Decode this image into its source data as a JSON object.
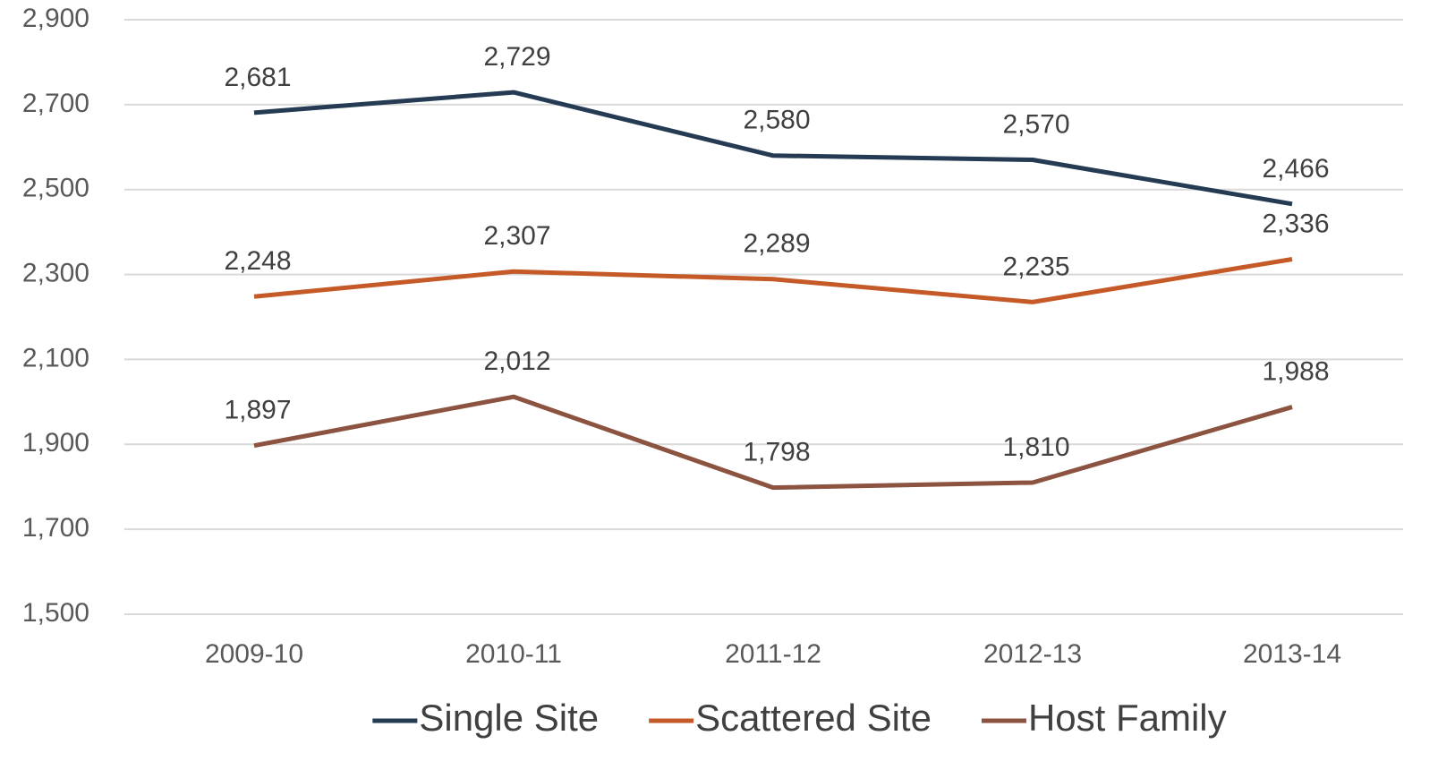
{
  "chart_data": {
    "type": "line",
    "categories": [
      "2009-10",
      "2010-11",
      "2011-12",
      "2012-13",
      "2013-14"
    ],
    "series": [
      {
        "name": "Single Site",
        "color": "#243b53",
        "values": [
          2681,
          2729,
          2580,
          2570,
          2466
        ],
        "value_labels": [
          "2,681",
          "2,729",
          "2,580",
          "2,570",
          "2,466"
        ]
      },
      {
        "name": "Scattered Site",
        "color": "#c55a28",
        "values": [
          2248,
          2307,
          2289,
          2235,
          2336
        ],
        "value_labels": [
          "2,248",
          "2,307",
          "2,289",
          "2,235",
          "2,336"
        ]
      },
      {
        "name": "Host Family",
        "color": "#8b5340",
        "values": [
          1897,
          2012,
          1798,
          1810,
          1988
        ],
        "value_labels": [
          "1,897",
          "2,012",
          "1,798",
          "1,810",
          "1,988"
        ]
      }
    ],
    "ylim": [
      1500,
      2900
    ],
    "yticks": [
      {
        "value": 1500,
        "label": "1,500"
      },
      {
        "value": 1700,
        "label": "1,700"
      },
      {
        "value": 1900,
        "label": "1,900"
      },
      {
        "value": 2100,
        "label": "2,100"
      },
      {
        "value": 2300,
        "label": "2,300"
      },
      {
        "value": 2500,
        "label": "2,500"
      },
      {
        "value": 2700,
        "label": "2,700"
      },
      {
        "value": 2900,
        "label": "2,900"
      }
    ],
    "grid": true,
    "legend": "bottom"
  }
}
